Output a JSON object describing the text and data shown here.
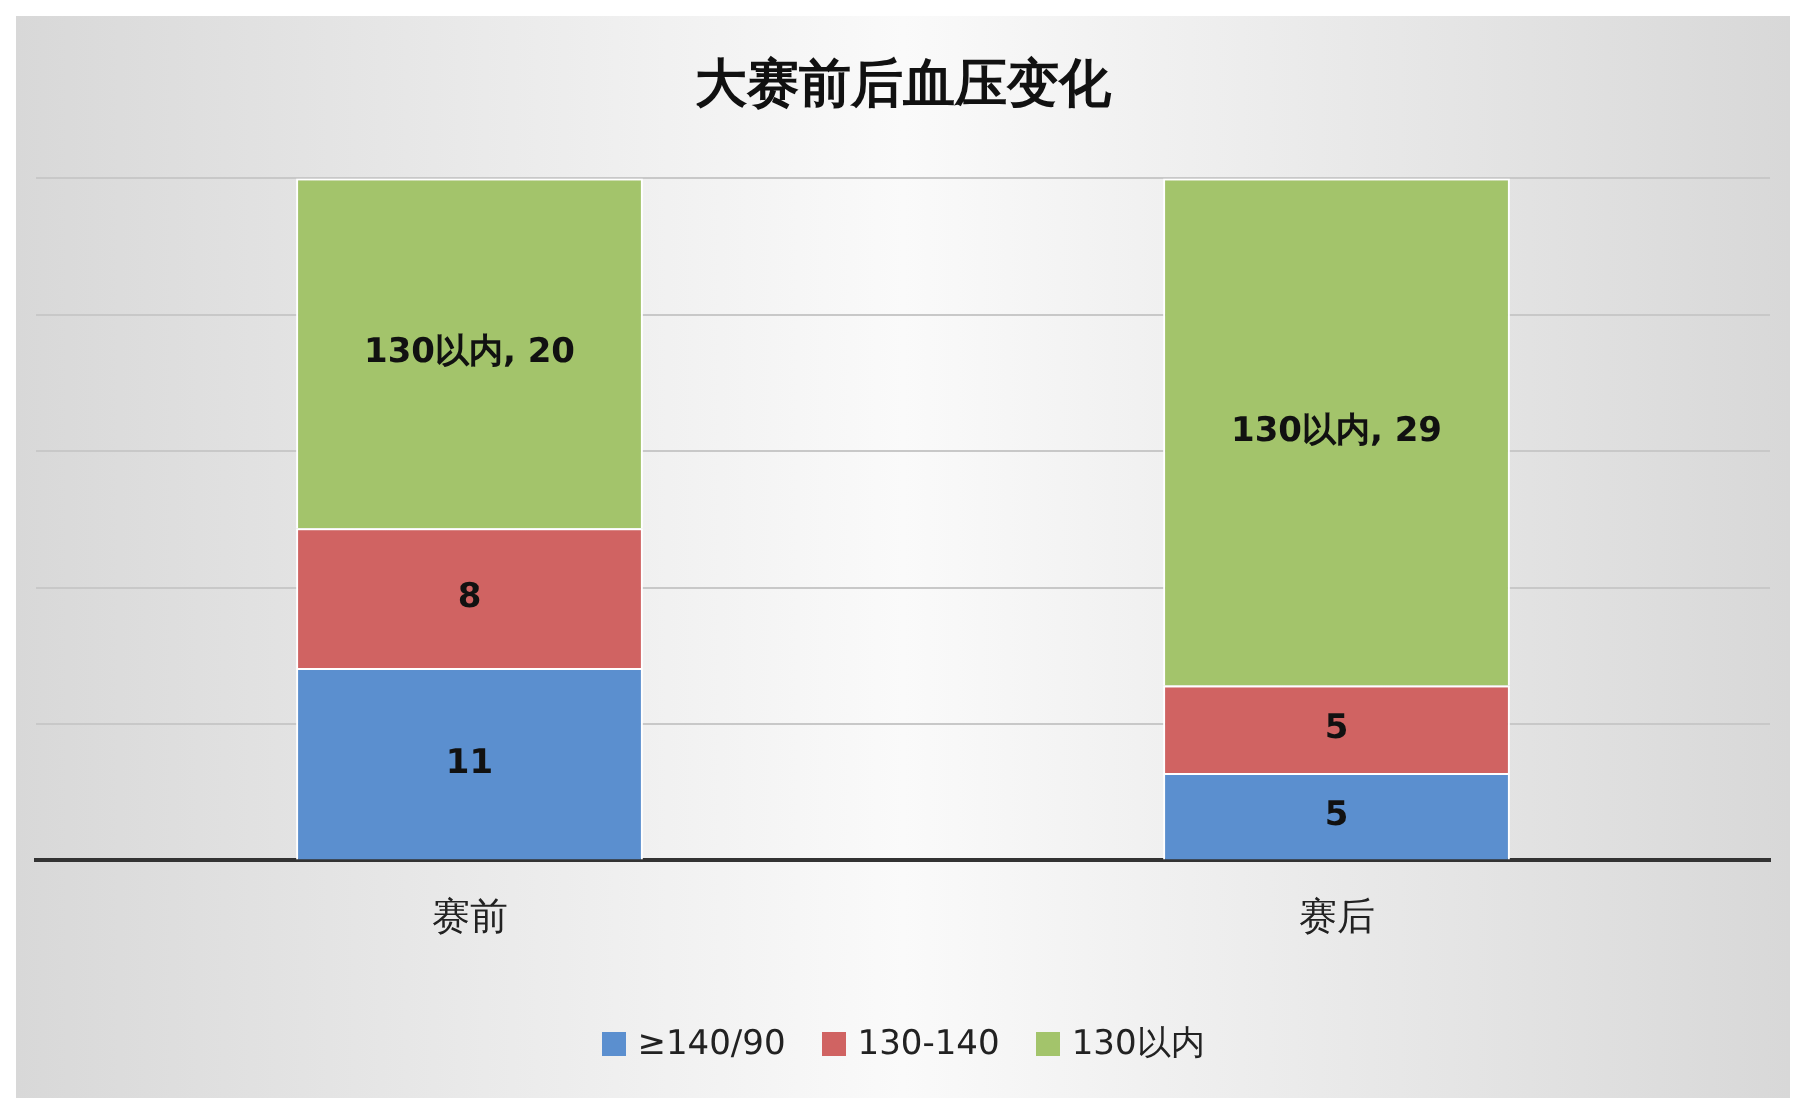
{
  "chart_data": {
    "type": "bar",
    "title": "大赛前后血压变化",
    "categories": [
      "赛前",
      "赛后"
    ],
    "stacked": true,
    "series": [
      {
        "name": "≥140/90",
        "color": "#5b8fcf",
        "values": [
          11,
          5
        ],
        "value_labels": [
          "11",
          "5"
        ]
      },
      {
        "name": "130-140",
        "color": "#d06362",
        "values": [
          8,
          5
        ],
        "value_labels": [
          "8",
          "5"
        ]
      },
      {
        "name": "130以内",
        "color": "#a3c46b",
        "values": [
          20,
          29
        ],
        "value_labels": [
          "130以内, 20",
          "130以内, 29"
        ]
      }
    ],
    "ylim": [
      0,
      39
    ],
    "yticks": [
      {
        "value": 0,
        "label": null
      },
      {
        "value": 7.8,
        "label": null
      },
      {
        "value": 15.6,
        "label": null
      },
      {
        "value": 23.4,
        "label": null
      },
      {
        "value": 31.2,
        "label": null
      },
      {
        "value": 39,
        "label": null
      }
    ],
    "tick_labels": "x",
    "grid": "y",
    "legend": "bottom"
  }
}
